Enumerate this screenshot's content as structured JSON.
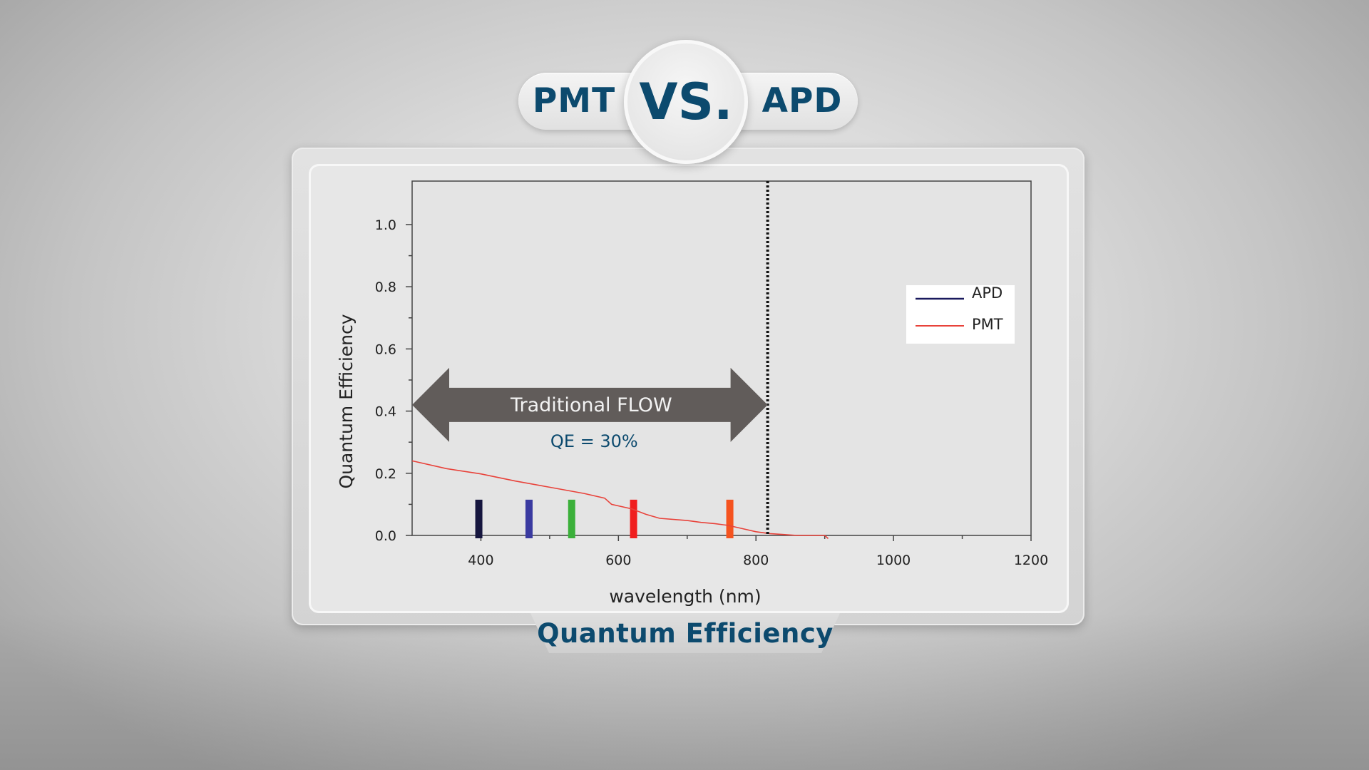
{
  "header": {
    "left_label": "PMT",
    "vs_label": "VS.",
    "right_label": "APD"
  },
  "footer_title": "Quantum Efficiency",
  "chart_data": {
    "type": "line",
    "xlabel": "wavelength (nm)",
    "ylabel": "Quantum Efficiency",
    "xlim": [
      300,
      1200
    ],
    "ylim": [
      0.0,
      1.1
    ],
    "x_ticks": [
      400,
      600,
      800,
      1000,
      1200
    ],
    "y_ticks": [
      0.0,
      0.2,
      0.4,
      0.6,
      0.8,
      1.0
    ],
    "x_tick_labels": [
      "400",
      "600",
      "800",
      "1000",
      "1200"
    ],
    "y_tick_labels": [
      "0.0",
      "0.2",
      "0.4",
      "0.6",
      "0.8",
      "1.0"
    ],
    "legend": {
      "placement": "right",
      "entries": [
        {
          "name": "APD",
          "color": "#1a1a5e"
        },
        {
          "name": "PMT",
          "color": "#e8423a"
        }
      ]
    },
    "series": [
      {
        "name": "PMT",
        "color": "#e8423a",
        "x": [
          300,
          350,
          400,
          450,
          500,
          550,
          580,
          590,
          620,
          640,
          660,
          700,
          720,
          740,
          760,
          780,
          800,
          820,
          840,
          860,
          880,
          900,
          905
        ],
        "y": [
          0.24,
          0.215,
          0.198,
          0.175,
          0.155,
          0.135,
          0.12,
          0.1,
          0.085,
          0.068,
          0.055,
          0.048,
          0.042,
          0.038,
          0.032,
          0.022,
          0.012,
          0.006,
          0.003,
          0.0,
          0.0,
          0.0,
          -0.01
        ]
      }
    ],
    "laser_lines": [
      {
        "x": 397,
        "color": "#16163f"
      },
      {
        "x": 470,
        "color": "#3a3aa0"
      },
      {
        "x": 532,
        "color": "#3bb03a"
      },
      {
        "x": 622,
        "color": "#f01e1e"
      },
      {
        "x": 762,
        "color": "#f5531f"
      }
    ],
    "laser_line_height": 0.115,
    "cutoff_line": {
      "x": 817,
      "style": "dotted",
      "color": "#111111"
    },
    "range_arrow": {
      "x_start": 300,
      "x_end": 817,
      "y": 0.42,
      "label": "Traditional FLOW",
      "sublabel": "QE = 30%",
      "color": "#615c5a"
    }
  }
}
